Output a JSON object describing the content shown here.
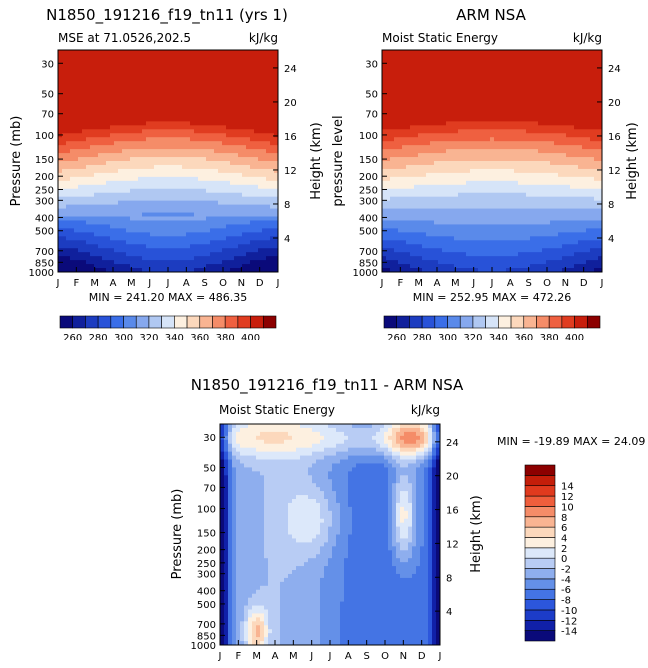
{
  "panels": [
    {
      "title": "N1850_191216_f19_tn11 (yrs 1)",
      "left_label": "MSE at 71.0526,202.5",
      "right_label": "kJ/kg",
      "ylabel": "Pressure (mb)",
      "y2label": "Height (km)",
      "minmax": "MIN = 241.20 MAX = 486.35"
    },
    {
      "title": "ARM NSA",
      "left_label": "Moist Static Energy",
      "right_label": "kJ/kg",
      "ylabel": "pressure level",
      "y2label": "Height (km)",
      "minmax": "MIN = 252.95 MAX = 472.26"
    },
    {
      "title": "N1850_191216_f19_tn11 - ARM NSA",
      "left_label": "Moist Static Energy",
      "right_label": "kJ/kg",
      "ylabel": "Pressure (mb)",
      "y2label": "Height (km)",
      "minmax": "MIN = -19.89 MAX =  24.09"
    }
  ],
  "chart_data": [
    {
      "type": "heatmap",
      "title": "N1850_191216_f19_tn11 (yrs 1)",
      "subtitle": "MSE at 71.0526,202.5",
      "units": "kJ/kg",
      "xlabel": "",
      "ylabel": "Pressure (mb)",
      "y2label": "Height (km)",
      "x_ticks": [
        "J",
        "F",
        "M",
        "A",
        "M",
        "J",
        "J",
        "A",
        "S",
        "O",
        "N",
        "D",
        "J"
      ],
      "y_ticks": [
        30,
        50,
        70,
        100,
        150,
        200,
        250,
        300,
        400,
        500,
        700,
        850,
        1000
      ],
      "y2_ticks": [
        4,
        8,
        12,
        16,
        20,
        24
      ],
      "ylim": [
        1000,
        24
      ],
      "contour_levels": [
        260,
        270,
        280,
        290,
        300,
        310,
        320,
        330,
        340,
        350,
        360,
        370,
        380,
        390,
        400
      ],
      "colorbar_labels": [
        260,
        280,
        300,
        320,
        340,
        360,
        380,
        400
      ],
      "min": 241.2,
      "max": 486.35
    },
    {
      "type": "heatmap",
      "title": "ARM NSA",
      "subtitle": "Moist Static Energy",
      "units": "kJ/kg",
      "xlabel": "",
      "ylabel": "pressure level",
      "y2label": "Height (km)",
      "x_ticks": [
        "J",
        "F",
        "M",
        "A",
        "M",
        "J",
        "J",
        "A",
        "S",
        "O",
        "N",
        "D",
        "J"
      ],
      "y_ticks": [
        30,
        50,
        70,
        100,
        150,
        200,
        250,
        300,
        400,
        500,
        700,
        850,
        1000
      ],
      "y2_ticks": [
        4,
        8,
        12,
        16,
        20,
        24
      ],
      "ylim": [
        1000,
        24
      ],
      "contour_levels": [
        260,
        270,
        280,
        290,
        300,
        310,
        320,
        330,
        340,
        350,
        360,
        370,
        380,
        390,
        400
      ],
      "colorbar_labels": [
        260,
        280,
        300,
        320,
        340,
        360,
        380,
        400
      ],
      "min": 252.95,
      "max": 472.26
    },
    {
      "type": "heatmap",
      "title": "N1850_191216_f19_tn11 - ARM NSA",
      "subtitle": "Moist Static Energy",
      "units": "kJ/kg",
      "xlabel": "",
      "ylabel": "Pressure (mb)",
      "y2label": "Height (km)",
      "x_ticks": [
        "J",
        "F",
        "M",
        "A",
        "M",
        "J",
        "J",
        "A",
        "S",
        "O",
        "N",
        "D",
        "J"
      ],
      "y_ticks": [
        30,
        50,
        70,
        100,
        150,
        200,
        250,
        300,
        400,
        500,
        700,
        850,
        1000
      ],
      "y2_ticks": [
        4,
        8,
        12,
        16,
        20,
        24
      ],
      "ylim": [
        1000,
        24
      ],
      "contour_levels": [
        -14,
        -12,
        -10,
        -8,
        -6,
        -4,
        -2,
        0,
        2,
        4,
        6,
        8,
        10,
        12,
        14
      ],
      "colorbar_labels": [
        -14,
        -12,
        -10,
        -8,
        -6,
        -4,
        -2,
        0,
        2,
        4,
        6,
        8,
        10,
        12,
        14
      ],
      "min": -19.89,
      "max": 24.09
    }
  ],
  "palette": [
    "#0a0a7a",
    "#10209c",
    "#1c3cc0",
    "#2852d8",
    "#3a6ee8",
    "#5a8aea",
    "#86a8ee",
    "#b0c8f2",
    "#d6e4f8",
    "#fdf0e0",
    "#fcd8bc",
    "#f9b492",
    "#f58c68",
    "#ef6040",
    "#e03c20",
    "#c81e0c",
    "#8c0000"
  ],
  "diff_palette": [
    "#0a0a7a",
    "#1020a8",
    "#1c3cc8",
    "#2c56dc",
    "#4474e4",
    "#6490e8",
    "#8eaeee",
    "#b8ccf4",
    "#dce8fa",
    "#fdf0e0",
    "#fcd8bc",
    "#f9b492",
    "#f58c68",
    "#ef5e3c",
    "#e03a1e",
    "#c41e0a",
    "#8c0000"
  ]
}
